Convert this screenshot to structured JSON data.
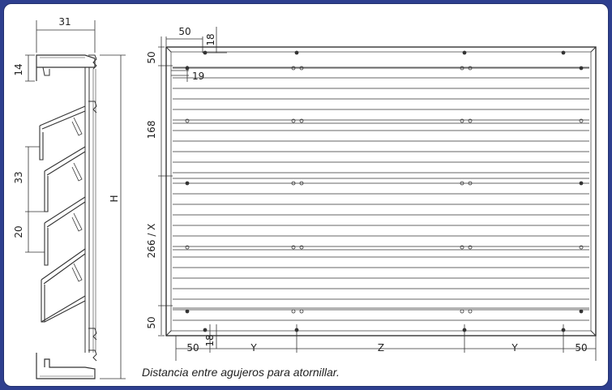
{
  "profile_dims": {
    "width": "31",
    "top": "14",
    "pitch": "33",
    "gap": "20",
    "height": "H"
  },
  "front_dims": {
    "top_edge": "50",
    "hole_offset": "18",
    "side_offset": "19",
    "row_spacing_1": "168",
    "row_spacing_2": "266 / X",
    "bottom_edge": "50",
    "bottom_left": "50",
    "span_y_left": "Y",
    "span_z": "Z",
    "span_y_right": "Y",
    "bottom_right": "50",
    "bottom_hole_offset": "18"
  },
  "caption": "Distancia entre agujeros para atornillar.",
  "colors": {
    "frame": "#2e3f8f",
    "line": "#333333",
    "background": "#ffffff"
  }
}
